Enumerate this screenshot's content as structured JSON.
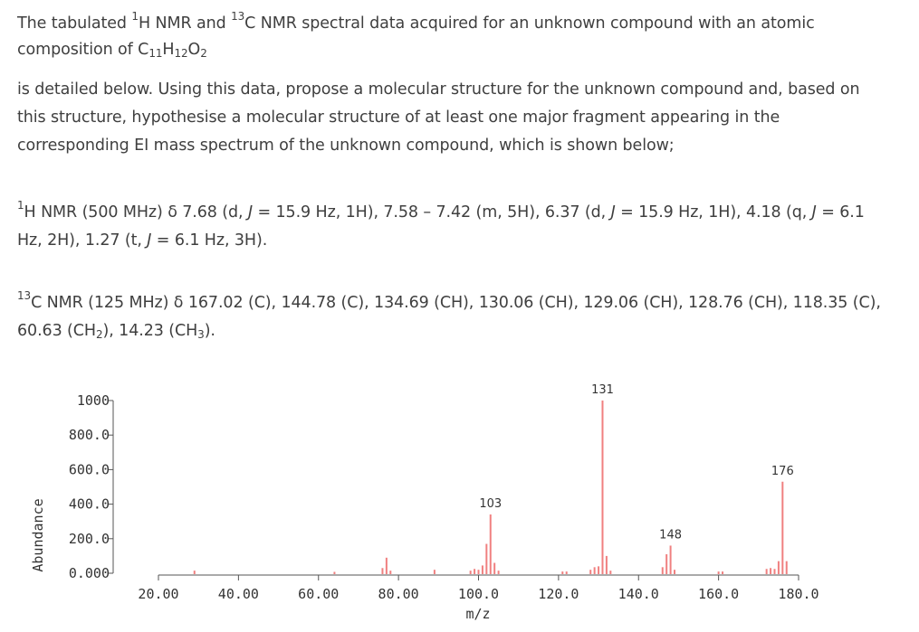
{
  "intro": {
    "line1_a": "The tabulated ",
    "sup1": "1",
    "line1_b": "H NMR and ",
    "sup2": "13",
    "line1_c": "C NMR spectral data acquired for an unknown compound with an atomic composition of C",
    "sub1": "11",
    "line1_d": "H",
    "sub2": "12",
    "line1_e": "O",
    "sub3": "2"
  },
  "task": "is detailed below. Using this data, propose a molecular structure for the unknown compound and, based on this structure, hypothesise a molecular structure of at least one major fragment appearing in the corresponding EI mass spectrum of the unknown compound, which is shown below;",
  "hnmr": {
    "sup": "1",
    "a": "H NMR (500 MHz) δ 7.68 (d, ",
    "j1": "J",
    "b": " = 15.9 Hz, 1H), 7.58 – 7.42 (m, 5H), 6.37 (d, ",
    "j2": "J",
    "c": " = 15.9 Hz, 1H), 4.18 (q, ",
    "j3": "J",
    "d": " = 6.1 Hz, 2H), 1.27 (t, ",
    "j4": "J",
    "e": " = 6.1 Hz, 3H)."
  },
  "cnmr": {
    "sup": "13",
    "a": "C NMR (125 MHz) δ 167.02 (C), 144.78 (C), 134.69 (CH), 130.06 (CH), 129.06 (CH), 128.76 (CH), 118.35 (C), 60.63 (CH",
    "sub1": "2",
    "b": "), 14.23 (CH",
    "sub2": "3",
    "c": ")."
  },
  "chart_data": {
    "type": "bar",
    "xlabel": "m/z",
    "ylabel": "Abundance",
    "xlim": [
      20,
      180
    ],
    "ylim": [
      0,
      1000
    ],
    "x_ticks": [
      "20.00",
      "40.00",
      "60.00",
      "80.00",
      "100.0",
      "120.0",
      "140.0",
      "160.0",
      "180.0"
    ],
    "y_ticks": [
      "0.000",
      "200.0",
      "400.0",
      "600.0",
      "800.0",
      "1000"
    ],
    "bar_color": "#f08080",
    "peaks": [
      {
        "mz": 29,
        "abundance": 15
      },
      {
        "mz": 64,
        "abundance": 8
      },
      {
        "mz": 76,
        "abundance": 30
      },
      {
        "mz": 77,
        "abundance": 90
      },
      {
        "mz": 78,
        "abundance": 15
      },
      {
        "mz": 89,
        "abundance": 20
      },
      {
        "mz": 98,
        "abundance": 15
      },
      {
        "mz": 99,
        "abundance": 25
      },
      {
        "mz": 100,
        "abundance": 20
      },
      {
        "mz": 101,
        "abundance": 45
      },
      {
        "mz": 102,
        "abundance": 170
      },
      {
        "mz": 103,
        "abundance": 340
      },
      {
        "mz": 104,
        "abundance": 60
      },
      {
        "mz": 105,
        "abundance": 15
      },
      {
        "mz": 121,
        "abundance": 10
      },
      {
        "mz": 122,
        "abundance": 10
      },
      {
        "mz": 128,
        "abundance": 20
      },
      {
        "mz": 129,
        "abundance": 35
      },
      {
        "mz": 130,
        "abundance": 40
      },
      {
        "mz": 131,
        "abundance": 1000
      },
      {
        "mz": 132,
        "abundance": 100
      },
      {
        "mz": 133,
        "abundance": 15
      },
      {
        "mz": 146,
        "abundance": 35
      },
      {
        "mz": 147,
        "abundance": 110
      },
      {
        "mz": 148,
        "abundance": 160
      },
      {
        "mz": 149,
        "abundance": 20
      },
      {
        "mz": 160,
        "abundance": 10
      },
      {
        "mz": 161,
        "abundance": 10
      },
      {
        "mz": 172,
        "abundance": 25
      },
      {
        "mz": 173,
        "abundance": 30
      },
      {
        "mz": 174,
        "abundance": 25
      },
      {
        "mz": 175,
        "abundance": 70
      },
      {
        "mz": 176,
        "abundance": 530
      },
      {
        "mz": 177,
        "abundance": 70
      }
    ],
    "peak_labels": [
      {
        "mz": 103,
        "abundance": 340,
        "text": "103"
      },
      {
        "mz": 131,
        "abundance": 1000,
        "text": "131"
      },
      {
        "mz": 148,
        "abundance": 160,
        "text": "148"
      },
      {
        "mz": 176,
        "abundance": 530,
        "text": "176"
      }
    ]
  }
}
